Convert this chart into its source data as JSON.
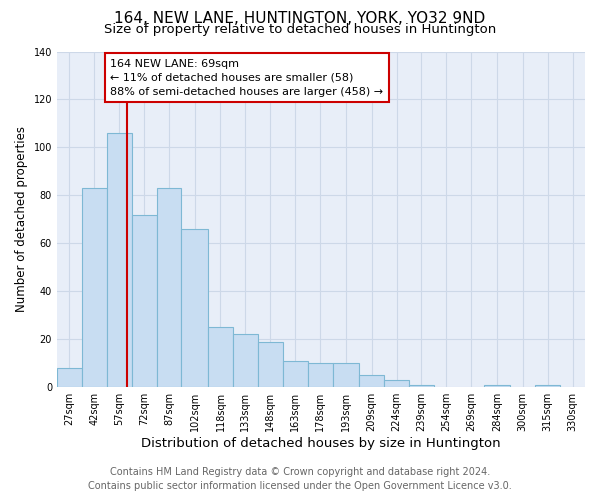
{
  "title": "164, NEW LANE, HUNTINGTON, YORK, YO32 9ND",
  "subtitle": "Size of property relative to detached houses in Huntington",
  "xlabel": "Distribution of detached houses by size in Huntington",
  "ylabel": "Number of detached properties",
  "footer_line1": "Contains HM Land Registry data © Crown copyright and database right 2024.",
  "footer_line2": "Contains public sector information licensed under the Open Government Licence v3.0.",
  "bin_labels": [
    "27sqm",
    "42sqm",
    "57sqm",
    "72sqm",
    "87sqm",
    "102sqm",
    "118sqm",
    "133sqm",
    "148sqm",
    "163sqm",
    "178sqm",
    "193sqm",
    "209sqm",
    "224sqm",
    "239sqm",
    "254sqm",
    "269sqm",
    "284sqm",
    "300sqm",
    "315sqm",
    "330sqm"
  ],
  "bin_edges": [
    27,
    42,
    57,
    72,
    87,
    102,
    118,
    133,
    148,
    163,
    178,
    193,
    209,
    224,
    239,
    254,
    269,
    284,
    300,
    315,
    330,
    345
  ],
  "bar_values": [
    8,
    83,
    106,
    72,
    83,
    66,
    25,
    22,
    19,
    11,
    10,
    10,
    5,
    3,
    1,
    0,
    0,
    1,
    0,
    1,
    0
  ],
  "bar_color": "#c8ddf2",
  "bar_edge_color": "#7eb8d4",
  "property_line_x": 69,
  "property_line_color": "#cc0000",
  "annotation_text": "164 NEW LANE: 69sqm\n← 11% of detached houses are smaller (58)\n88% of semi-detached houses are larger (458) →",
  "annotation_box_color": "#ffffff",
  "annotation_box_edge_color": "#cc0000",
  "ylim": [
    0,
    140
  ],
  "yticks": [
    0,
    20,
    40,
    60,
    80,
    100,
    120,
    140
  ],
  "grid_color": "#cdd8e8",
  "bg_color": "#ffffff",
  "plot_bg_color": "#e8eef8",
  "title_fontsize": 11,
  "subtitle_fontsize": 9.5,
  "xlabel_fontsize": 9.5,
  "ylabel_fontsize": 8.5,
  "footer_fontsize": 7,
  "annot_fontsize": 8,
  "tick_fontsize": 7
}
